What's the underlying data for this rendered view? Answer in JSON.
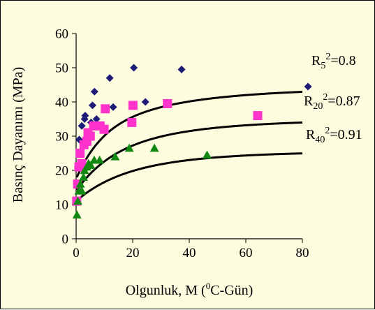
{
  "chart_data": {
    "type": "scatter",
    "xlabel": "Olgunluk, M (0C-Gün)",
    "xlabel_parts": {
      "pre": "Olgunluk, M (",
      "sup": "0",
      "post": "C-Gün)"
    },
    "ylabel": "Basınç Dayanımı (MPa)",
    "xlim": [
      0,
      80
    ],
    "ylim": [
      0,
      60
    ],
    "x_ticks": [
      "0",
      "20",
      "40",
      "60",
      "80"
    ],
    "y_ticks": [
      "0",
      "10",
      "20",
      "30",
      "40",
      "50",
      "60"
    ],
    "grid": false,
    "legend": "none",
    "series": [
      {
        "key": "R5",
        "marker": "diamond",
        "color": "#1c1c78",
        "x": [
          0.2,
          0.6,
          1.1,
          2.0,
          3.0,
          3.2,
          4.1,
          5.3,
          5.8,
          6.5,
          7.2,
          10.1,
          11.9,
          13.1,
          20.4,
          24.5,
          37.3,
          82.0
        ],
        "y": [
          11,
          21,
          29,
          33,
          35,
          36,
          31,
          34,
          39,
          43,
          35,
          38,
          47,
          38.5,
          50,
          40,
          49.5,
          44.5
        ],
        "fit": {
          "a": 17.5,
          "b": 14,
          "k": 0.11
        },
        "r2_label": {
          "base": "R",
          "sub": "5",
          "sup": "2",
          "value": "=0.8"
        }
      },
      {
        "key": "R20",
        "marker": "square",
        "color": "#ff33cc",
        "x": [
          0.2,
          0.5,
          1.0,
          1.4,
          2.0,
          2.8,
          3.8,
          4.2,
          5.0,
          6.2,
          8.5,
          9.9,
          10.3,
          19.7,
          20.1,
          32.3,
          64.2
        ],
        "y": [
          11,
          16,
          21,
          25,
          22,
          27.5,
          28.5,
          31,
          30,
          33,
          33,
          32,
          38,
          34,
          39,
          39.5,
          36
        ],
        "fit": {
          "a": 14,
          "b": 11,
          "k": 0.08
        },
        "r2_label": {
          "base": "R",
          "sub": "20",
          "sup": "2",
          "value": "=0.87"
        }
      },
      {
        "key": "R40",
        "marker": "triangle",
        "color": "#118811",
        "x": [
          0.3,
          0.6,
          1.0,
          1.5,
          2.0,
          2.6,
          3.0,
          3.8,
          4.4,
          5.2,
          6.4,
          8.3,
          13.8,
          18.8,
          27.7,
          46.3
        ],
        "y": [
          7,
          11,
          14,
          16,
          14,
          18,
          20,
          21,
          22,
          21.5,
          23,
          23,
          24,
          26.5,
          26.5,
          24.5
        ],
        "fit": {
          "a": 11,
          "b": 7.7,
          "k": 0.067
        },
        "r2_label": {
          "base": "R",
          "sub": "40",
          "sup": "2",
          "value": "=0.91"
        }
      }
    ]
  }
}
